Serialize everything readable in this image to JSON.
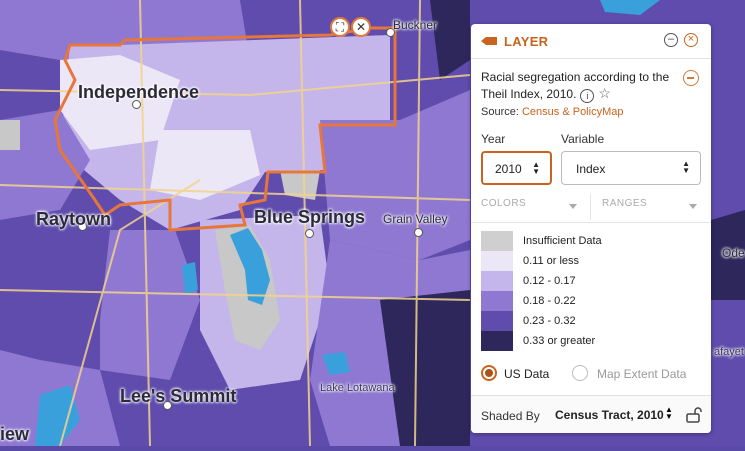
{
  "map": {
    "labels": {
      "buckner": "Buckner",
      "independence": "Independence",
      "raytown": "Raytown",
      "blue_springs": "Blue Springs",
      "grain_valley": "Grain Valley",
      "lees_summit": "Lee's Summit",
      "lake_lotawana": "Lake Lotawana",
      "edge_left": "iew",
      "edge_right_top": "Ode",
      "edge_right_bottom": "afayet"
    },
    "colors": {
      "boundary": "#e8763a",
      "water": "#3aa0dc",
      "road": "#f2d48c",
      "insufficient": "#c8c8c8"
    },
    "selection_controls": {
      "resize_icon": "resize-icon",
      "close_icon": "close-icon"
    }
  },
  "panel": {
    "title": "LAYER",
    "layer_icon": "layer-icon",
    "minimize_icon": "minimize-icon",
    "close_icon": "close-icon",
    "description": "Racial segregation according to the Theil Index, 2010.",
    "info_icon": "info-icon",
    "star_icon": "star-icon",
    "remove_icon": "remove-layer-icon",
    "source_label": "Source:",
    "source_value": "Census & PolicyMap",
    "year_label": "Year",
    "year_value": "2010",
    "variable_label": "Variable",
    "variable_value": "Index",
    "colors_tab": "COLORS",
    "ranges_tab": "RANGES",
    "legend": [
      {
        "label": "Insufficient Data",
        "color": "#cfcfcf"
      },
      {
        "label": "0.11 or less",
        "color": "#ece7f7"
      },
      {
        "label": "0.12 - 0.17",
        "color": "#c4b6ea"
      },
      {
        "label": "0.18 - 0.22",
        "color": "#8f78d2"
      },
      {
        "label": "0.23 - 0.32",
        "color": "#5f4cad"
      },
      {
        "label": "0.33 or greater",
        "color": "#2d275b"
      }
    ],
    "radio_us": "US Data",
    "radio_extent": "Map Extent Data",
    "shaded_by_label": "Shaded By",
    "shaded_by_value": "Census Tract, 2010",
    "lock_icon": "unlock-icon"
  }
}
